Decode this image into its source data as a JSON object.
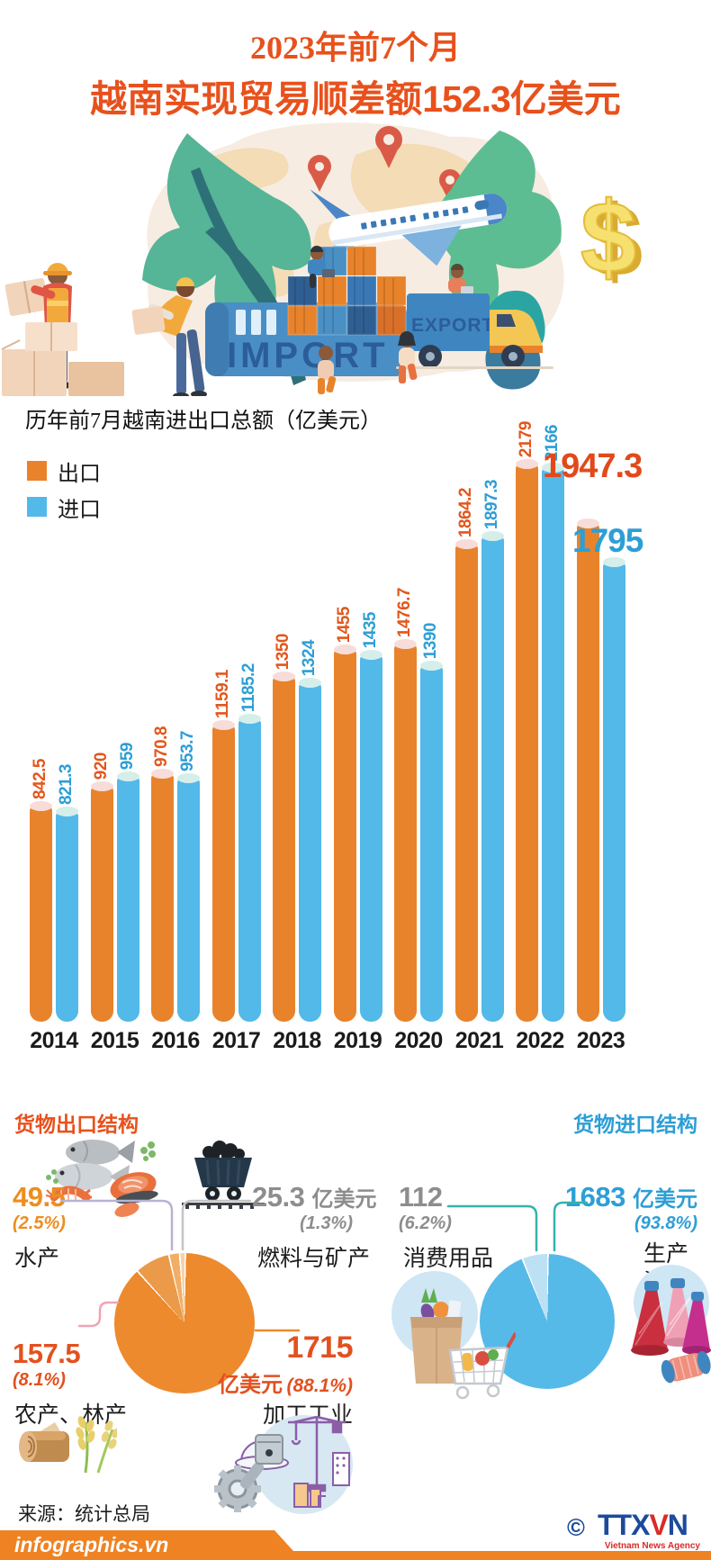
{
  "header": {
    "line1": "2023年前7个月",
    "line2_prefix": "越南实现贸易顺差额",
    "line2_value": "152.3",
    "line2_suffix": "亿美元"
  },
  "illustration": {
    "import_label": "IMPORT",
    "export_label": "EXPORT",
    "dollar_sign": "$"
  },
  "chart_data": [
    {
      "type": "bar",
      "title": "历年前7月越南进出口总额（亿美元）",
      "y_unit": "亿美元",
      "categories": [
        "2014",
        "2015",
        "2016",
        "2017",
        "2018",
        "2019",
        "2020",
        "2021",
        "2022",
        "2023"
      ],
      "series": [
        {
          "name": "出口",
          "color": "#e8832b",
          "cap_color": "#f7dcd9",
          "label_color": "#e2571d",
          "values": [
            842.5,
            920,
            970.8,
            1159.1,
            1350,
            1455,
            1476.7,
            1864.2,
            2179,
            1947.3
          ],
          "labels": [
            "842.5",
            "920",
            "970.8",
            "1159.1",
            "1350",
            "1455",
            "1476.7",
            "1864.2",
            "2179",
            "1947.3"
          ]
        },
        {
          "name": "进口",
          "color": "#52b9e9",
          "cap_color": "#d6eeea",
          "label_color": "#2d9ed6",
          "values": [
            821.3,
            959,
            953.7,
            1185.2,
            1324,
            1435,
            1390,
            1897.3,
            2166,
            1795
          ],
          "labels": [
            "821.3",
            "959",
            "953.7",
            "1185.2",
            "1324",
            "1435",
            "1390",
            "1897.3",
            "2166",
            "1795"
          ]
        }
      ],
      "legend_position": "top-left",
      "grid": false
    },
    {
      "type": "pie",
      "title": "货物出口结构",
      "unit": "亿美元",
      "slices": [
        {
          "label": "加工工业",
          "value": 1715,
          "pct": 88.1,
          "color": "#ec8a2d"
        },
        {
          "label": "农产、林产",
          "value": 157.5,
          "pct": 8.1,
          "color": "#eb9a49"
        },
        {
          "label": "水产",
          "value": 49.5,
          "pct": 2.5,
          "color": "#f2ae67"
        },
        {
          "label": "燃料与矿产",
          "value": 25.3,
          "pct": 1.3,
          "color": "#f8d2a4"
        }
      ]
    },
    {
      "type": "pie",
      "title": "货物进口结构",
      "unit": "亿美元",
      "slices": [
        {
          "label": "生产资料",
          "value": 1683,
          "pct": 93.8,
          "color": "#56bae9"
        },
        {
          "label": "消费用品",
          "value": 112,
          "pct": 6.2,
          "color": "#bde1f4"
        }
      ]
    }
  ],
  "export_structure": {
    "title": "货物出口结构",
    "seafood": {
      "value": "49.5",
      "pct": "(2.5%)",
      "label": "水产"
    },
    "fuel": {
      "value": "25.3",
      "unit": "亿美元",
      "pct": "(1.3%)",
      "label": "燃料与矿产"
    },
    "agri": {
      "value": "157.5",
      "pct": "(8.1%)",
      "label": "农产、林产"
    },
    "industry": {
      "value": "1715",
      "unit": "亿美元",
      "pct": "(88.1%)",
      "label": "加工工业"
    }
  },
  "import_structure": {
    "title": "货物进口结构",
    "consumer": {
      "value": "112",
      "pct": "(6.2%)",
      "label": "消费用品"
    },
    "production": {
      "value": "1683",
      "unit": "亿美元",
      "pct": "(93.8%)",
      "label": "生产资料\n"
    },
    "production_label_line1": "生产",
    "production_label_line2": "资料"
  },
  "colors": {
    "title_red": "#e8511c",
    "export_orange": "#e8832b",
    "import_blue": "#52b9e9",
    "gray_value": "#8d8d8d",
    "footer_orange": "#ef8222",
    "teal_connector": "#35b3ab"
  },
  "footer": {
    "source": "来源：统计总局",
    "site": "infographics.vn",
    "copyright": "©",
    "agency_abbr_1": "TTX",
    "agency_abbr_2": "V",
    "agency_abbr_3": "N",
    "agency_name": "Vietnam News Agency"
  }
}
